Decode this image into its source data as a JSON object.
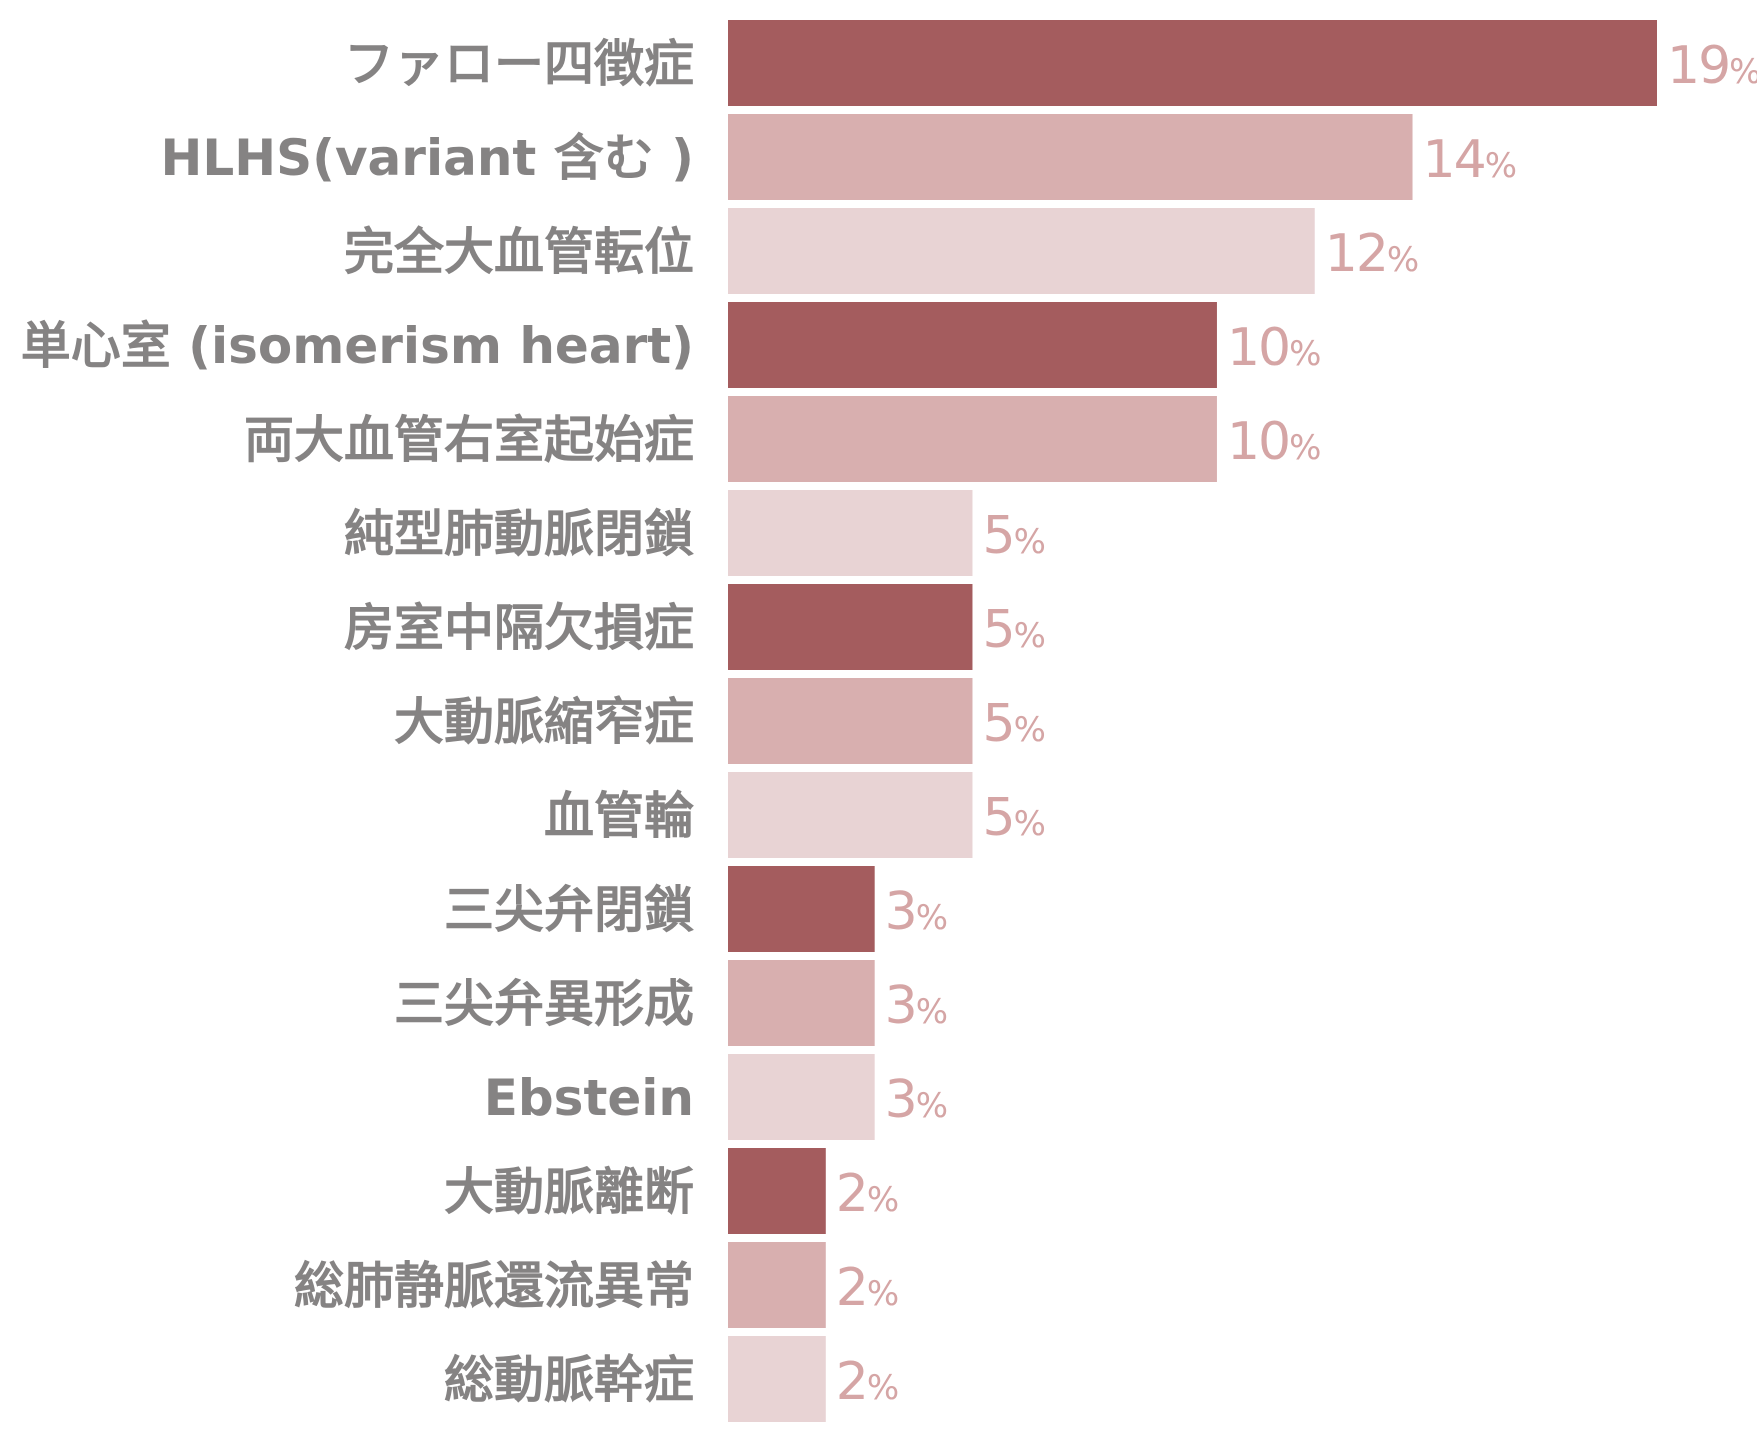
{
  "chart_data": {
    "type": "bar",
    "orientation": "horizontal",
    "title": "",
    "xlabel": "",
    "ylabel": "",
    "xlim": [
      0,
      19
    ],
    "grid": false,
    "legend": "none",
    "value_suffix": "%",
    "categories": [
      "ファロー四徴症",
      "HLHS(variant 含む )",
      "完全大血管転位",
      "単心室 (isomerism heart)",
      "両大血管右室起始症",
      "純型肺動脈閉鎖",
      "房室中隔欠損症",
      "大動脈縮窄症",
      "血管輪",
      "三尖弁閉鎖",
      "三尖弁異形成",
      "Ebstein",
      "大動脈離断",
      "総肺静脈還流異常",
      "総動脈幹症"
    ],
    "values": [
      19,
      14,
      12,
      10,
      10,
      5,
      5,
      5,
      5,
      3,
      3,
      3,
      2,
      2,
      2
    ],
    "bar_colors": [
      "#a45c5e",
      "#d8afaf",
      "#e8d3d4"
    ],
    "label_color": "#858383",
    "value_label_color": "#d5a5a5"
  }
}
